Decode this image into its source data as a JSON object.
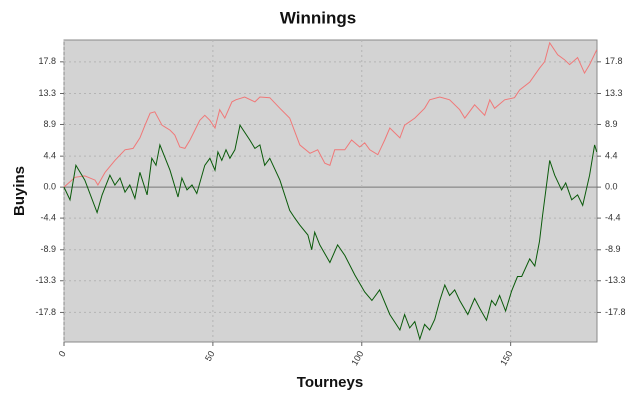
{
  "chart_data": {
    "type": "line",
    "title": "Winnings",
    "x_label": "Tourneys",
    "y_label": "Buyins",
    "xlim": [
      0,
      179
    ],
    "xticks": [
      0,
      50,
      100,
      150
    ],
    "ylim": [
      -22,
      20.9
    ],
    "yticks": [
      -17.8,
      -13.3,
      -8.9,
      -4.4,
      {
        "value": 0,
        "label": "0.0"
      },
      4.4,
      8.9,
      13.3,
      17.8
    ],
    "grid": true,
    "background": "#d3d3d3",
    "series": [
      {
        "color": "#f07878",
        "x": [
          0,
          3.7,
          7.0,
          10.4,
          11.4,
          13.8,
          17.1,
          20.5,
          23.2,
          25.5,
          27.2,
          28.9,
          30.5,
          32.9,
          35.6,
          37.2,
          38.9,
          40.6,
          42.3,
          45.6,
          47.3,
          49.0,
          50.7,
          52.3,
          54.0,
          56.4,
          57.7,
          60.7,
          64.1,
          65.8,
          69.1,
          72.5,
          75.8,
          79.2,
          82.6,
          85.2,
          87.6,
          89.3,
          90.9,
          94.3,
          96.6,
          99.3,
          101.0,
          102.7,
          105.4,
          107.7,
          109.4,
          112.8,
          114.4,
          117.8,
          121.1,
          122.8,
          126.2,
          129.5,
          132.9,
          134.6,
          137.9,
          141.3,
          143.0,
          144.6,
          148.0,
          151.3,
          153.0,
          156.4,
          159.7,
          161.4,
          163.1,
          165.8,
          168.1,
          169.8,
          172.5,
          174.8,
          176.5,
          178.9
        ],
        "values": [
          0,
          1.4,
          1.6,
          1.0,
          0.3,
          2.1,
          3.8,
          5.3,
          5.5,
          7.0,
          8.8,
          10.5,
          10.7,
          8.8,
          8.1,
          7.4,
          5.7,
          5.5,
          6.7,
          9.5,
          10.2,
          9.5,
          8.4,
          11.0,
          9.8,
          12.1,
          12.4,
          12.8,
          12.1,
          12.8,
          12.7,
          11.2,
          9.8,
          6.0,
          4.8,
          5.3,
          3.4,
          3.1,
          5.3,
          5.3,
          6.7,
          5.7,
          6.3,
          5.3,
          4.6,
          6.7,
          8.4,
          7.0,
          8.8,
          9.8,
          11.2,
          12.4,
          12.8,
          12.4,
          11.0,
          9.8,
          11.7,
          10.2,
          12.4,
          11.2,
          12.4,
          12.7,
          13.8,
          14.9,
          16.9,
          17.8,
          20.5,
          18.8,
          18.1,
          17.4,
          18.4,
          16.2,
          17.4,
          19.5
        ]
      },
      {
        "color": "#0a5a0a",
        "x": [
          0,
          2.0,
          4.0,
          7.0,
          11.1,
          12.8,
          15.4,
          17.1,
          18.8,
          20.5,
          22.1,
          23.8,
          25.5,
          27.9,
          29.5,
          30.9,
          32.2,
          35.6,
          38.3,
          39.6,
          41.3,
          43.0,
          44.6,
          47.3,
          49.0,
          50.7,
          51.7,
          53.0,
          54.4,
          55.7,
          57.4,
          59.1,
          62.4,
          64.1,
          65.8,
          67.4,
          69.1,
          72.5,
          75.8,
          77.5,
          79.2,
          81.9,
          83.2,
          84.2,
          85.9,
          89.3,
          91.9,
          94.3,
          97.7,
          101.0,
          103.4,
          106.0,
          109.4,
          112.8,
          114.4,
          116.1,
          117.8,
          119.5,
          121.1,
          122.8,
          124.5,
          126.2,
          127.9,
          129.5,
          131.2,
          132.9,
          135.6,
          137.9,
          139.6,
          141.9,
          143.6,
          144.9,
          146.3,
          148.3,
          150.3,
          152.3,
          153.7,
          156.4,
          158.1,
          159.7,
          160.7,
          163.1,
          164.8,
          167.1,
          168.5,
          170.5,
          172.5,
          174.2,
          176.5,
          178.2,
          178.9
        ],
        "values": [
          0,
          -1.8,
          3.1,
          1.0,
          -3.6,
          -1.1,
          1.7,
          0.3,
          1.3,
          -0.7,
          0.3,
          -1.6,
          2.1,
          -1.1,
          4.1,
          3.1,
          6.0,
          2.4,
          -1.4,
          1.3,
          -0.4,
          0.3,
          -0.9,
          3.1,
          4.1,
          2.4,
          5.0,
          3.8,
          5.3,
          4.1,
          5.3,
          8.8,
          6.7,
          5.5,
          6.0,
          3.1,
          4.1,
          1.0,
          -3.3,
          -4.4,
          -5.4,
          -6.8,
          -8.9,
          -6.4,
          -8.2,
          -10.7,
          -8.2,
          -9.7,
          -12.5,
          -14.9,
          -16.1,
          -14.6,
          -18.1,
          -20.3,
          -18.1,
          -20.0,
          -19.1,
          -21.6,
          -19.5,
          -20.3,
          -18.8,
          -16.1,
          -13.9,
          -15.4,
          -14.6,
          -16.1,
          -18.1,
          -15.8,
          -17.2,
          -18.9,
          -16.1,
          -16.8,
          -15.4,
          -17.6,
          -14.8,
          -12.7,
          -12.7,
          -10.2,
          -11.2,
          -7.7,
          -4.1,
          3.8,
          1.7,
          -0.4,
          0.6,
          -1.8,
          -1.1,
          -2.6,
          1.7,
          6.0,
          5.0
        ]
      }
    ]
  }
}
